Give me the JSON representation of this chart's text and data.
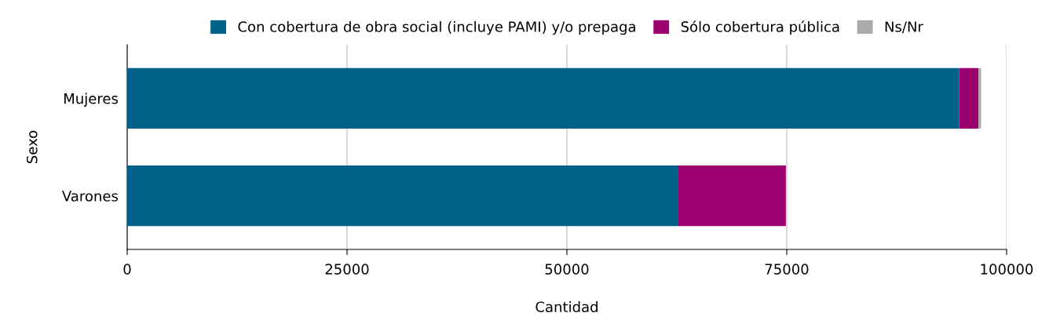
{
  "chart_data": {
    "type": "bar",
    "orientation": "horizontal",
    "stacked": true,
    "categories": [
      "Mujeres",
      "Varones"
    ],
    "series": [
      {
        "name": "Con cobertura de obra social (incluye PAMI) y/o prepaga",
        "color": "#006288",
        "values": [
          94600,
          62600
        ]
      },
      {
        "name": "Sólo cobertura pública",
        "color": "#9c006f",
        "values": [
          2200,
          12300
        ]
      },
      {
        "name": "Ns/Nr",
        "color": "#aaaaaa",
        "values": [
          300,
          0
        ]
      }
    ],
    "xlim": [
      0,
      100000
    ],
    "xticks": [
      0,
      25000,
      50000,
      75000,
      100000
    ],
    "xlabel": "Cantidad",
    "ylabel": "Sexo",
    "grid": "x",
    "legend": "top"
  }
}
